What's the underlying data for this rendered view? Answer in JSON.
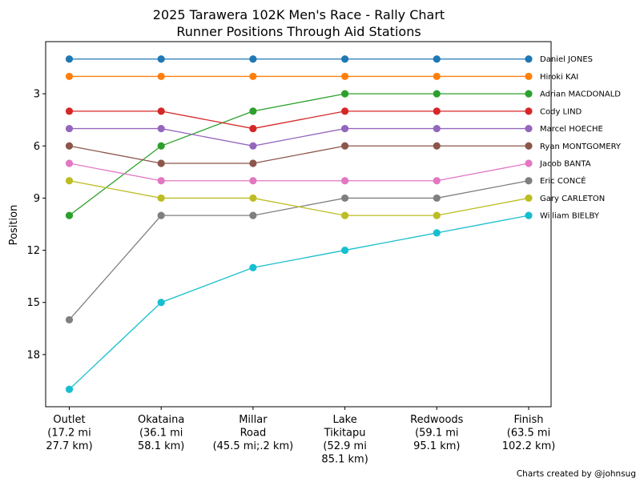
{
  "chart_data": {
    "type": "line",
    "title": "2025 Tarawera 102K Men's Race - Rally Chart",
    "subtitle": "Runner Positions Through Aid Stations",
    "xlabel": "",
    "ylabel": "Position",
    "y_inverted": true,
    "ylim": [
      21,
      0
    ],
    "yticks": [
      3,
      6,
      9,
      12,
      15,
      18
    ],
    "grid": false,
    "categories": [
      [
        "Outlet",
        "(17.2 mi",
        "27.7 km)"
      ],
      [
        "Okataina",
        "(36.1 mi",
        "58.1 km)"
      ],
      [
        "Millar",
        "Road",
        "(45.5 mi;.2 km)"
      ],
      [
        "Lake",
        "Tikitapu",
        "(52.9 mi",
        "85.1 km)"
      ],
      [
        "Redwoods",
        "(59.1 mi",
        "95.1 km)"
      ],
      [
        "Finish",
        "(63.5 mi",
        "102.2 km)"
      ]
    ],
    "series": [
      {
        "name": "Daniel JONES",
        "color": "#1f77b4",
        "values": [
          1,
          1,
          1,
          1,
          1,
          1
        ]
      },
      {
        "name": "Hiroki KAI",
        "color": "#ff7f0e",
        "values": [
          2,
          2,
          2,
          2,
          2,
          2
        ]
      },
      {
        "name": "Adrian MACDONALD",
        "color": "#2ca02c",
        "values": [
          10,
          6,
          4,
          3,
          3,
          3
        ]
      },
      {
        "name": "Cody LIND",
        "color": "#d62728",
        "values": [
          4,
          4,
          5,
          4,
          4,
          4
        ]
      },
      {
        "name": "Marcel HOECHE",
        "color": "#9467bd",
        "values": [
          5,
          5,
          6,
          5,
          5,
          5
        ]
      },
      {
        "name": "Ryan MONTGOMERY",
        "color": "#8c564b",
        "values": [
          6,
          7,
          7,
          6,
          6,
          6
        ]
      },
      {
        "name": "Jacob BANTA",
        "color": "#e377c2",
        "values": [
          7,
          8,
          8,
          8,
          8,
          7
        ]
      },
      {
        "name": "Eric CONCÉ",
        "color": "#7f7f7f",
        "values": [
          16,
          10,
          10,
          9,
          9,
          8
        ]
      },
      {
        "name": "Gary CARLETON",
        "color": "#bcbd22",
        "values": [
          8,
          9,
          9,
          10,
          10,
          9
        ]
      },
      {
        "name": "William BIELBY",
        "color": "#17becf",
        "values": [
          20,
          15,
          13,
          12,
          11,
          10
        ]
      }
    ]
  },
  "footer": {
    "credit": "Charts created by @johnsug"
  }
}
